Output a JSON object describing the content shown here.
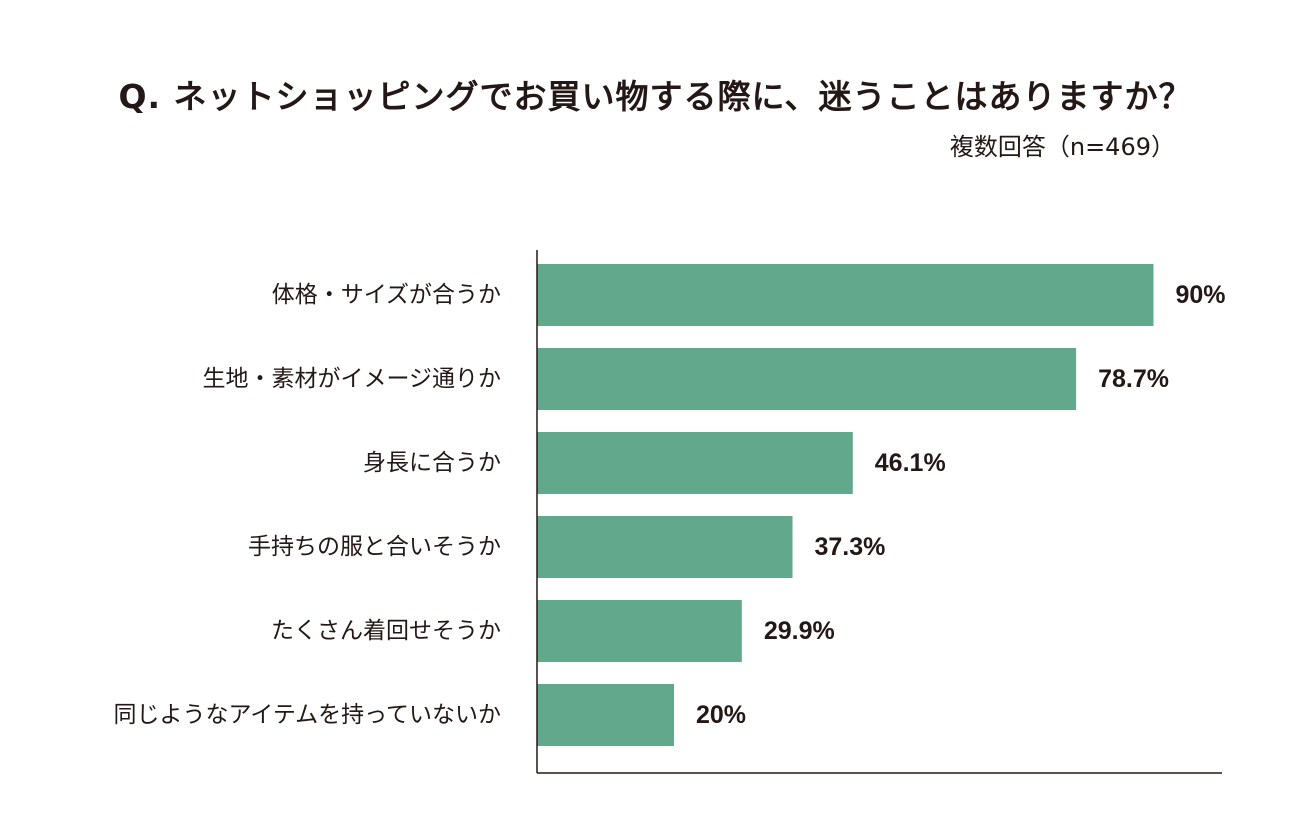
{
  "title": "Q. ネットショッピングでお買い物する際に、迷うことはありますか？",
  "subtitle": "複数回答（n=469）",
  "colors": {
    "bar": "#62a88d",
    "axis": "#231815",
    "text": "#231815"
  },
  "chart_data": {
    "type": "bar",
    "orientation": "horizontal",
    "categories": [
      "体格・サイズが合うか",
      "生地・素材がイメージ通りか",
      "身長に合うか",
      "手持ちの服と合いそうか",
      "たくさん着回せそうか",
      "同じようなアイテムを持っていないか"
    ],
    "values": [
      90,
      78.7,
      46.1,
      37.3,
      29.9,
      20
    ],
    "value_labels": [
      "90%",
      "78.7%",
      "46.1%",
      "37.3%",
      "29.9%",
      "20%"
    ],
    "xlim": [
      0,
      100
    ],
    "grid": false,
    "legend": false
  }
}
